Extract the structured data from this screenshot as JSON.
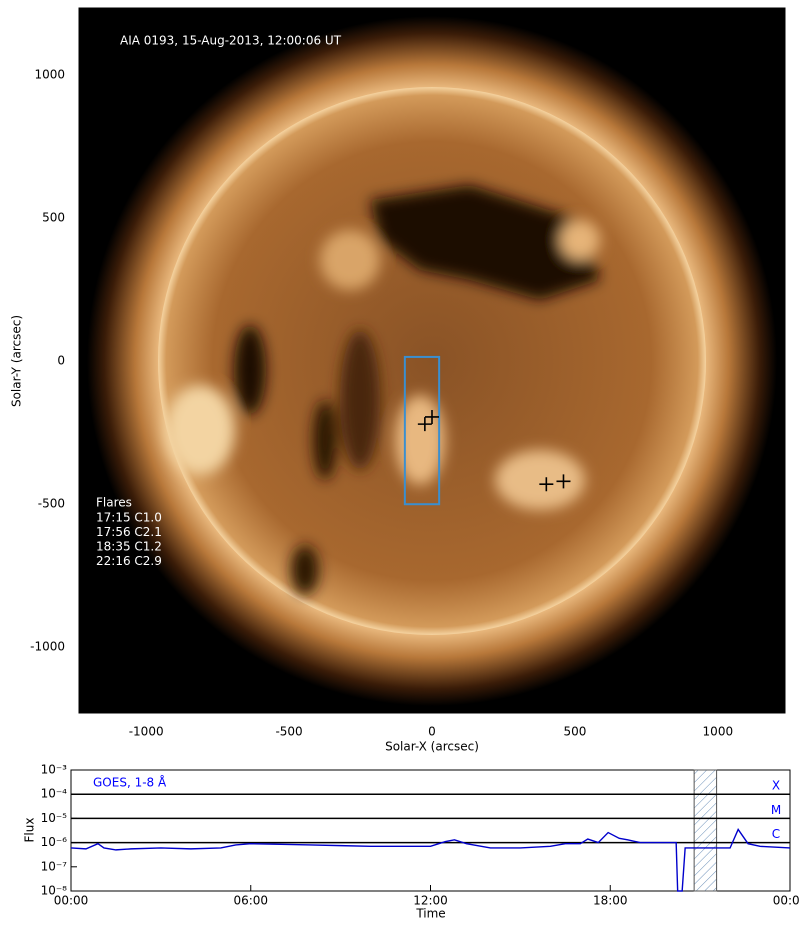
{
  "chart_data": [
    {
      "type": "image",
      "annotation": "AIA 0193, 15-Aug-2013, 12:00:06 UT",
      "xlabel": "Solar-X (arcsec)",
      "ylabel": "Solar-Y (arcsec)",
      "xlim": [
        -1235,
        1235
      ],
      "ylim": [
        -1230,
        1235
      ],
      "xticks": [
        -1000,
        -500,
        0,
        500,
        1000
      ],
      "yticks": [
        -1000,
        -500,
        0,
        500,
        1000
      ],
      "legend_title": "Flares",
      "legend_entries": [
        "17:15 C1.0",
        "17:56 C2.1",
        "18:35 C1.2",
        "22:16 C2.9"
      ],
      "box": {
        "x": [
          -95,
          25
        ],
        "y": [
          -500,
          15
        ],
        "color": "#3a8fd0"
      },
      "markers": {
        "x": [
          -25,
          0,
          400,
          460
        ],
        "y": [
          -220,
          -195,
          -430,
          -420
        ],
        "color": "#000000"
      }
    },
    {
      "type": "line",
      "annotation": "GOES, 1-8 Å",
      "xlabel": "Time",
      "ylabel": "Flux",
      "yscale": "log",
      "xlim": [
        0,
        24
      ],
      "ylim": [
        1e-08,
        0.001
      ],
      "xticks": [
        {
          "value": 0,
          "label": "00:00"
        },
        {
          "value": 6,
          "label": "06:00"
        },
        {
          "value": 12,
          "label": "12:00"
        },
        {
          "value": 18,
          "label": "18:00"
        },
        {
          "value": 24,
          "label": "00:00"
        }
      ],
      "yticks": [
        {
          "value": 1e-08,
          "label": "10⁻⁸"
        },
        {
          "value": 1e-07,
          "label": "10⁻⁷"
        },
        {
          "value": 1e-06,
          "label": "10⁻⁶"
        },
        {
          "value": 1e-05,
          "label": "10⁻⁵"
        },
        {
          "value": 0.0001,
          "label": "10⁻⁴"
        },
        {
          "value": 0.001,
          "label": "10⁻³"
        }
      ],
      "class_lines": [
        {
          "value": 0.0001,
          "label": "X"
        },
        {
          "value": 1e-05,
          "label": "M"
        },
        {
          "value": 1e-06,
          "label": "C"
        }
      ],
      "highlight_span": [
        20.8,
        21.55
      ],
      "color": "#0000cc",
      "x": [
        0,
        0.5,
        0.9,
        1.1,
        1.5,
        2,
        3,
        4,
        5,
        5.5,
        6,
        7,
        8,
        9,
        10,
        11,
        12,
        12.5,
        12.8,
        13.2,
        14,
        15,
        16,
        16.5,
        17,
        17.25,
        17.6,
        17.93,
        18.3,
        18.58,
        19,
        19.5,
        20,
        20.2,
        20.25,
        20.4,
        20.5,
        21,
        21.5,
        22,
        22.27,
        22.6,
        23,
        24
      ],
      "values": [
        6e-07,
        5.5e-07,
        9e-07,
        6e-07,
        5e-07,
        5.5e-07,
        6e-07,
        5.5e-07,
        6e-07,
        8e-07,
        9e-07,
        8.5e-07,
        8e-07,
        7.5e-07,
        7e-07,
        7e-07,
        7e-07,
        1.1e-06,
        1.3e-06,
        9e-07,
        6e-07,
        6e-07,
        7e-07,
        9e-07,
        9e-07,
        1.4e-06,
        1e-06,
        2.6e-06,
        1.5e-06,
        1.3e-06,
        1e-06,
        1e-06,
        1e-06,
        1e-06,
        1e-08,
        1e-08,
        6e-07,
        6e-07,
        6e-07,
        6e-07,
        3.5e-06,
        9e-07,
        7e-07,
        6e-07
      ]
    }
  ]
}
